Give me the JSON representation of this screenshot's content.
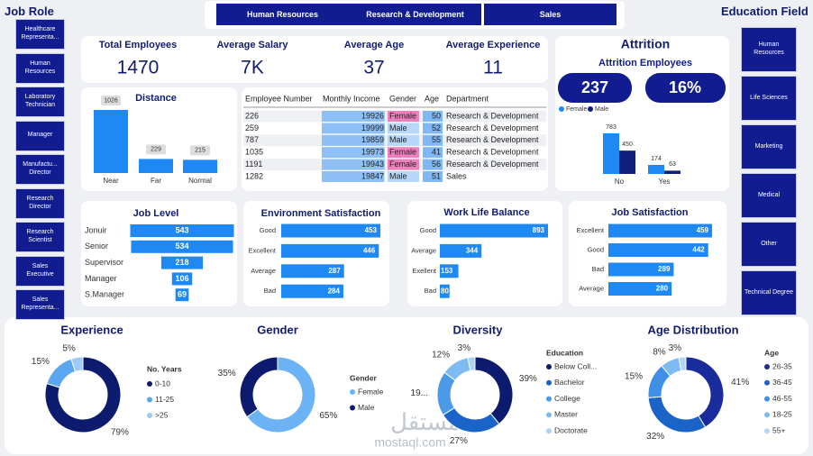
{
  "job_role": {
    "title": "Job Role",
    "items": [
      "Healthcare Representa...",
      "Human Resources",
      "Laboratory Technician",
      "Manager",
      "Manufactu... Director",
      "Research Director",
      "Research Scientist",
      "Sales Executive",
      "Sales Representa..."
    ]
  },
  "department_tabs": [
    "Human Resources",
    "Research & Development",
    "Sales"
  ],
  "education_field": {
    "title": "Education Field",
    "items": [
      "Human Resources",
      "Life Sciences",
      "Marketing",
      "Medical",
      "Other",
      "Technical Degree"
    ]
  },
  "kpis": [
    {
      "label": "Total Employees",
      "value": "1470"
    },
    {
      "label": "Average Salary",
      "value": "7K"
    },
    {
      "label": "Average Age",
      "value": "37"
    },
    {
      "label": "Average Experience",
      "value": "11"
    }
  ],
  "attrition": {
    "title": "Attrition",
    "subtitle": "Attrition Employees",
    "count": "237",
    "rate": "16%"
  },
  "table": {
    "columns": [
      "Employee Number",
      "Monthly Income",
      "Gender",
      "Age",
      "Department"
    ],
    "rows": [
      [
        226,
        19926,
        "Female",
        50,
        "Research & Development"
      ],
      [
        259,
        19999,
        "Male",
        52,
        "Research & Development"
      ],
      [
        787,
        19859,
        "Male",
        55,
        "Research & Development"
      ],
      [
        1035,
        19973,
        "Female",
        41,
        "Research & Development"
      ],
      [
        1191,
        19943,
        "Female",
        56,
        "Research & Development"
      ],
      [
        1282,
        19847,
        "Male",
        51,
        "Sales"
      ]
    ]
  },
  "watermark": [
    "مستقل",
    "mostaql.com"
  ],
  "chart_data": [
    {
      "type": "bar",
      "categories": [
        "No",
        "Yes"
      ],
      "series": [
        {
          "name": "Female",
          "color": "#1e88f5",
          "values": [
            783,
            174
          ]
        },
        {
          "name": "Male",
          "color": "#0f1f7a",
          "values": [
            450,
            63
          ]
        }
      ]
    },
    {
      "type": "bar",
      "title": "Distance",
      "categories": [
        "Near",
        "Far",
        "Normal"
      ],
      "values": [
        1026,
        229,
        215
      ],
      "color": "#1e88f5"
    },
    {
      "type": "funnel",
      "title": "Job Level",
      "categories": [
        "Jonuir",
        "Senior",
        "Supervisor",
        "Manager",
        "S.Manager"
      ],
      "values": [
        543,
        534,
        218,
        106,
        69
      ],
      "color": "#1e88f5"
    },
    {
      "type": "hbar",
      "title": "Environment Satisfaction",
      "categories": [
        "Good",
        "Excellent",
        "Average",
        "Bad"
      ],
      "values": [
        453,
        446,
        287,
        284
      ],
      "color": "#1e88f5"
    },
    {
      "type": "hbar",
      "title": "Work Life Balance",
      "categories": [
        "Good",
        "Average",
        "Exellent",
        "Bad"
      ],
      "values": [
        893,
        344,
        153,
        80
      ],
      "color": "#1e88f5"
    },
    {
      "type": "hbar",
      "title": "Job Satisfaction",
      "categories": [
        "Excellent",
        "Good",
        "Bad",
        "Average"
      ],
      "values": [
        459,
        442,
        289,
        280
      ],
      "color": "#1e88f5"
    },
    {
      "type": "donut",
      "title": "Experience",
      "legend_title": "No. Years",
      "categories": [
        "0-10",
        "11-25",
        ">25"
      ],
      "values": [
        79,
        15,
        5
      ],
      "value_labels": [
        "79%",
        "15%",
        "5%"
      ],
      "colors": [
        "#0d1b6e",
        "#5aa6f0",
        "#9ecbf5"
      ]
    },
    {
      "type": "donut",
      "title": "Gender",
      "legend_title": "Gender",
      "categories": [
        "Female",
        "Male"
      ],
      "values": [
        65,
        35
      ],
      "value_labels": [
        "65%",
        "35%"
      ],
      "colors": [
        "#6cb3f5",
        "#0d1b6e"
      ]
    },
    {
      "type": "donut",
      "title": "Diversity",
      "legend_title": "Education",
      "categories": [
        "Below Coll...",
        "Bachelor",
        "College",
        "Master",
        "Doctorate"
      ],
      "values": [
        39,
        27,
        19,
        12,
        3
      ],
      "value_labels": [
        "39%",
        "27%",
        "19...",
        "12%",
        "3%"
      ],
      "colors": [
        "#0d1b6e",
        "#1a63c9",
        "#4a9ae8",
        "#7dbbf2",
        "#a8d2f7"
      ]
    },
    {
      "type": "donut",
      "title": "Age Distribution",
      "legend_title": "Age",
      "categories": [
        "26-35",
        "36-45",
        "46-55",
        "18-25",
        "55+"
      ],
      "values": [
        41,
        32,
        15,
        8,
        3
      ],
      "value_labels": [
        "41%",
        "32%",
        "15%",
        "8%",
        "3%"
      ],
      "colors": [
        "#1a2c9c",
        "#1a63c9",
        "#3f8fe6",
        "#7dbbf2",
        "#b0d6f8"
      ]
    }
  ]
}
